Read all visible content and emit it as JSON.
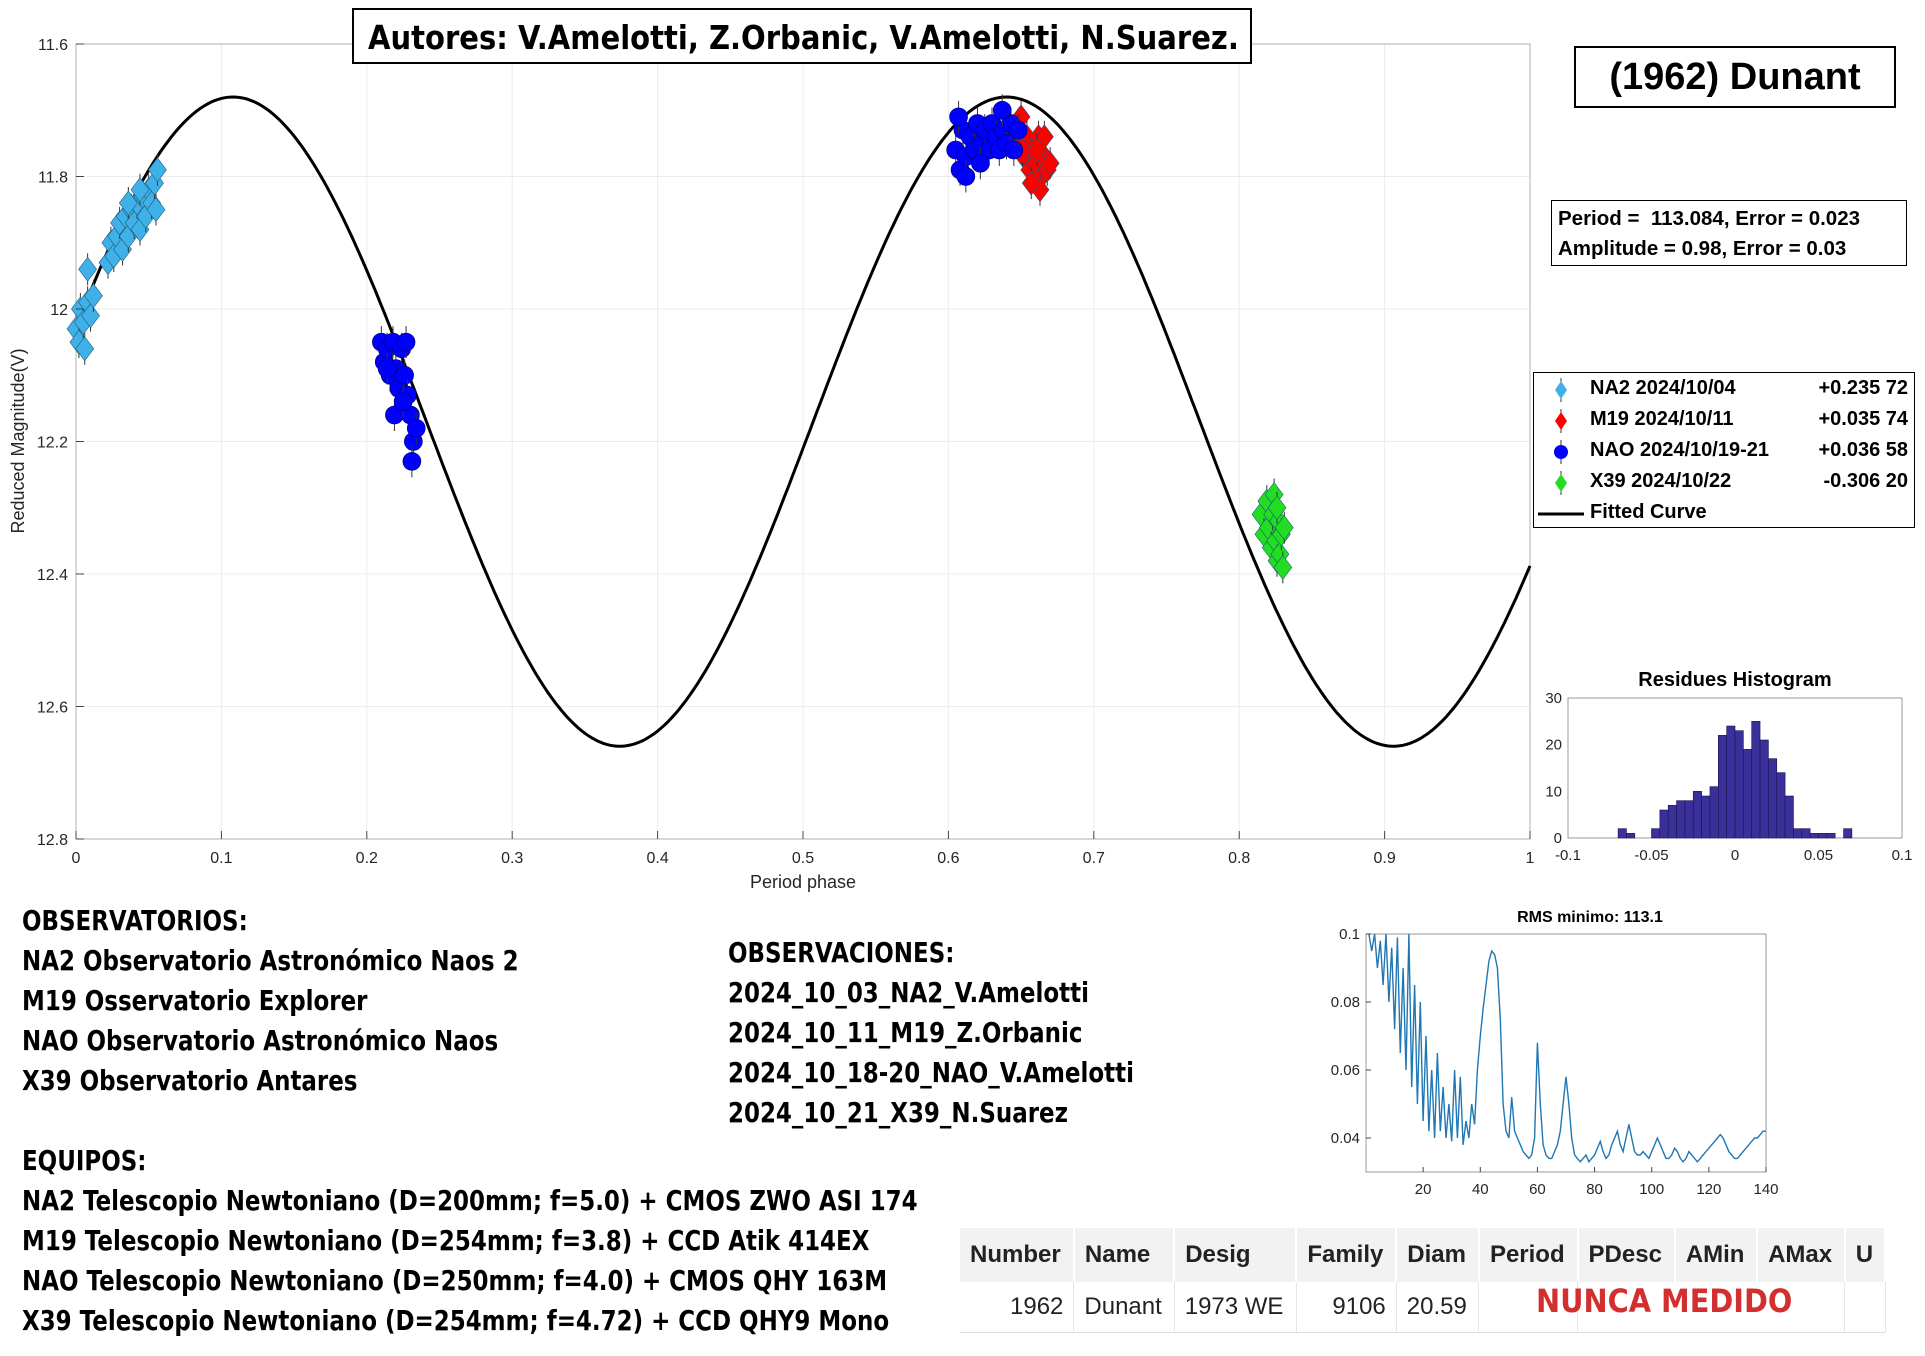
{
  "header": {
    "authors": "Autores: V.Amelotti, Z.Orbanic, V.Amelotti, N.Suarez.",
    "object_name": "(1962) Dunant",
    "period_text": "Period =  113.084, Error = 0.023",
    "amplitude_text": "Amplitude = 0.98, Error = 0.03"
  },
  "chart_data": [
    {
      "type": "scatter",
      "xlabel": "Period phase",
      "ylabel": "Reduced Magnitude(V)",
      "xlim": [
        0,
        1
      ],
      "ylim": [
        11.6,
        12.8
      ],
      "y_reversed": true,
      "xticks": [
        0,
        0.1,
        0.2,
        0.3,
        0.4,
        0.5,
        0.6,
        0.7,
        0.8,
        0.9,
        1
      ],
      "xtick_labels": [
        "0",
        "0.1",
        "0.2",
        "0.3",
        "0.4",
        "0.5",
        "0.6",
        "0.7",
        "0.8",
        "0.9",
        "1"
      ],
      "yticks": [
        11.6,
        11.8,
        12,
        12.2,
        12.4,
        12.6,
        12.8
      ],
      "ytick_labels": [
        "11.6",
        "11.8",
        "12",
        "12.2",
        "12.4",
        "12.6",
        "12.8"
      ],
      "grid": true,
      "legend_position": "right",
      "fitted_curve": {
        "name": "Fitted Curve",
        "color": "#000000",
        "mean": 12.17,
        "semi_amplitude": 0.49,
        "max_brightness_phases": [
          0.108,
          0.64
        ]
      },
      "series": [
        {
          "name": "NA2 2024/10/04",
          "offset": "+0.235 72",
          "marker": "diamond",
          "color": "#3fb0e8",
          "points": [
            [
              0.0,
              12.03
            ],
            [
              0.002,
              12.05
            ],
            [
              0.003,
              12.0
            ],
            [
              0.005,
              12.02
            ],
            [
              0.006,
              12.06
            ],
            [
              0.008,
              11.99
            ],
            [
              0.008,
              11.94
            ],
            [
              0.01,
              12.01
            ],
            [
              0.012,
              11.98
            ],
            [
              0.022,
              11.93
            ],
            [
              0.024,
              11.9
            ],
            [
              0.026,
              11.92
            ],
            [
              0.028,
              11.89
            ],
            [
              0.03,
              11.87
            ],
            [
              0.032,
              11.91
            ],
            [
              0.034,
              11.86
            ],
            [
              0.036,
              11.89
            ],
            [
              0.038,
              11.85
            ],
            [
              0.04,
              11.87
            ],
            [
              0.042,
              11.84
            ],
            [
              0.044,
              11.88
            ],
            [
              0.046,
              11.83
            ],
            [
              0.048,
              11.86
            ],
            [
              0.05,
              11.82
            ],
            [
              0.052,
              11.84
            ],
            [
              0.054,
              11.81
            ],
            [
              0.056,
              11.79
            ],
            [
              0.044,
              11.82
            ],
            [
              0.036,
              11.84
            ],
            [
              0.055,
              11.85
            ]
          ]
        },
        {
          "name": "M19 2024/10/11",
          "offset": "+0.035 74",
          "marker": "diamond",
          "color": "#ff0000",
          "points": [
            [
              0.645,
              11.73
            ],
            [
              0.648,
              11.75
            ],
            [
              0.65,
              11.71
            ],
            [
              0.652,
              11.77
            ],
            [
              0.654,
              11.74
            ],
            [
              0.656,
              11.79
            ],
            [
              0.658,
              11.76
            ],
            [
              0.66,
              11.78
            ],
            [
              0.662,
              11.74
            ],
            [
              0.664,
              11.8
            ],
            [
              0.666,
              11.77
            ],
            [
              0.668,
              11.79
            ],
            [
              0.663,
              11.82
            ],
            [
              0.657,
              11.81
            ],
            [
              0.651,
              11.76
            ],
            [
              0.666,
              11.74
            ],
            [
              0.67,
              11.78
            ],
            [
              0.661,
              11.76
            ]
          ]
        },
        {
          "name": "NAO 2024/10/19-21",
          "offset": "+0.036 58",
          "marker": "circle",
          "color": "#0000ff",
          "points": [
            [
              0.21,
              12.05
            ],
            [
              0.212,
              12.08
            ],
            [
              0.214,
              12.06
            ],
            [
              0.216,
              12.1
            ],
            [
              0.218,
              12.05
            ],
            [
              0.22,
              12.09
            ],
            [
              0.222,
              12.12
            ],
            [
              0.224,
              12.06
            ],
            [
              0.226,
              12.1
            ],
            [
              0.228,
              12.13
            ],
            [
              0.23,
              12.16
            ],
            [
              0.232,
              12.2
            ],
            [
              0.234,
              12.18
            ],
            [
              0.219,
              12.16
            ],
            [
              0.225,
              12.14
            ],
            [
              0.231,
              12.23
            ],
            [
              0.227,
              12.05
            ],
            [
              0.214,
              12.09
            ],
            [
              0.605,
              11.76
            ],
            [
              0.608,
              11.79
            ],
            [
              0.61,
              11.73
            ],
            [
              0.612,
              11.77
            ],
            [
              0.615,
              11.74
            ],
            [
              0.618,
              11.76
            ],
            [
              0.62,
              11.72
            ],
            [
              0.623,
              11.75
            ],
            [
              0.625,
              11.73
            ],
            [
              0.628,
              11.76
            ],
            [
              0.63,
              11.72
            ],
            [
              0.633,
              11.74
            ],
            [
              0.635,
              11.76
            ],
            [
              0.638,
              11.73
            ],
            [
              0.64,
              11.75
            ],
            [
              0.643,
              11.72
            ],
            [
              0.645,
              11.76
            ],
            [
              0.648,
              11.73
            ],
            [
              0.607,
              11.71
            ],
            [
              0.622,
              11.78
            ],
            [
              0.637,
              11.7
            ],
            [
              0.612,
              11.8
            ]
          ]
        },
        {
          "name": "X39 2024/10/22",
          "offset": "-0.306 20",
          "marker": "diamond",
          "color": "#22dd22",
          "points": [
            [
              0.815,
              12.31
            ],
            [
              0.817,
              12.34
            ],
            [
              0.819,
              12.29
            ],
            [
              0.82,
              12.33
            ],
            [
              0.822,
              12.36
            ],
            [
              0.823,
              12.31
            ],
            [
              0.824,
              12.28
            ],
            [
              0.825,
              12.35
            ],
            [
              0.826,
              12.38
            ],
            [
              0.827,
              12.32
            ],
            [
              0.828,
              12.37
            ],
            [
              0.829,
              12.34
            ],
            [
              0.83,
              12.39
            ],
            [
              0.831,
              12.33
            ],
            [
              0.826,
              12.3
            ]
          ]
        }
      ],
      "legend_entries": [
        {
          "label": "NA2 2024/10/04",
          "value": "+0.235 72",
          "color": "#3fb0e8",
          "marker": "diamond"
        },
        {
          "label": "M19 2024/10/11",
          "value": "+0.035 74",
          "color": "#ff0000",
          "marker": "diamond"
        },
        {
          "label": "NAO 2024/10/19-21",
          "value": "+0.036 58",
          "color": "#0000ff",
          "marker": "circle"
        },
        {
          "label": "X39 2024/10/22",
          "value": "-0.306 20",
          "color": "#22dd22",
          "marker": "diamond"
        },
        {
          "label": "Fitted Curve",
          "value": "",
          "color": "#000000",
          "marker": "line"
        }
      ]
    },
    {
      "type": "bar",
      "title": "Residues Histogram",
      "xlim": [
        -0.1,
        0.1
      ],
      "ylim": [
        0,
        30
      ],
      "xticks": [
        -0.1,
        -0.05,
        0,
        0.05,
        0.1
      ],
      "xtick_labels": [
        "-0.1",
        "-0.05",
        "0",
        "0.05",
        "0.1"
      ],
      "yticks": [
        0,
        10,
        20,
        30
      ],
      "ytick_labels": [
        "0",
        "10",
        "20",
        "30"
      ],
      "bin_width": 0.005,
      "bin_starts": [
        -0.07,
        -0.065,
        -0.06,
        -0.055,
        -0.05,
        -0.045,
        -0.04,
        -0.035,
        -0.03,
        -0.025,
        -0.02,
        -0.015,
        -0.01,
        -0.005,
        0.0,
        0.005,
        0.01,
        0.015,
        0.02,
        0.025,
        0.03,
        0.035,
        0.04,
        0.045,
        0.05,
        0.055,
        0.06,
        0.065
      ],
      "values": [
        2,
        1,
        0,
        0,
        2,
        6,
        7,
        8,
        8,
        10,
        9,
        11,
        22,
        24,
        23,
        19,
        25,
        21,
        17,
        14,
        9,
        2,
        2,
        1,
        1,
        1,
        0,
        2
      ],
      "color": "#3b2f9a"
    },
    {
      "type": "line",
      "title": "RMS minimo: 113.1",
      "xlim": [
        0,
        140
      ],
      "ylim": [
        0.03,
        0.1
      ],
      "xticks": [
        20,
        40,
        60,
        80,
        100,
        120,
        140
      ],
      "xtick_labels": [
        "20",
        "40",
        "60",
        "80",
        "100",
        "120",
        "140"
      ],
      "yticks": [
        0.04,
        0.06,
        0.08,
        0.1
      ],
      "ytick_labels": [
        "0.04",
        "0.06",
        "0.08",
        "0.1"
      ],
      "color": "#1f77b4",
      "x": [
        1,
        2,
        3,
        4,
        5,
        6,
        7,
        8,
        9,
        10,
        11,
        12,
        13,
        14,
        15,
        16,
        17,
        18,
        19,
        20,
        21,
        22,
        23,
        24,
        25,
        26,
        27,
        28,
        29,
        30,
        31,
        32,
        33,
        34,
        35,
        36,
        37,
        38,
        39,
        40,
        41,
        42,
        43,
        44,
        45,
        46,
        47,
        48,
        49,
        50,
        51,
        52,
        53,
        54,
        55,
        56,
        57,
        58,
        59,
        60,
        61,
        62,
        63,
        64,
        65,
        66,
        67,
        68,
        69,
        70,
        71,
        72,
        73,
        74,
        75,
        76,
        77,
        78,
        79,
        80,
        81,
        82,
        83,
        84,
        85,
        86,
        87,
        88,
        89,
        90,
        91,
        92,
        93,
        94,
        95,
        96,
        97,
        98,
        99,
        100,
        101,
        102,
        103,
        104,
        105,
        106,
        107,
        108,
        109,
        110,
        111,
        112,
        113,
        114,
        115,
        116,
        117,
        118,
        119,
        120,
        121,
        122,
        123,
        124,
        125,
        126,
        127,
        128,
        129,
        130,
        131,
        132,
        133,
        134,
        135,
        136,
        137,
        138,
        139,
        140
      ],
      "y": [
        0.1,
        0.095,
        0.1,
        0.09,
        0.098,
        0.085,
        0.1,
        0.08,
        0.096,
        0.072,
        0.099,
        0.065,
        0.09,
        0.06,
        0.1,
        0.055,
        0.085,
        0.05,
        0.08,
        0.045,
        0.07,
        0.042,
        0.06,
        0.04,
        0.065,
        0.042,
        0.055,
        0.04,
        0.05,
        0.039,
        0.06,
        0.04,
        0.058,
        0.038,
        0.045,
        0.04,
        0.05,
        0.044,
        0.06,
        0.07,
        0.078,
        0.085,
        0.092,
        0.095,
        0.094,
        0.09,
        0.075,
        0.05,
        0.042,
        0.04,
        0.052,
        0.042,
        0.04,
        0.038,
        0.036,
        0.035,
        0.034,
        0.035,
        0.04,
        0.068,
        0.05,
        0.038,
        0.035,
        0.034,
        0.034,
        0.036,
        0.038,
        0.042,
        0.05,
        0.058,
        0.05,
        0.04,
        0.035,
        0.034,
        0.033,
        0.034,
        0.035,
        0.033,
        0.034,
        0.035,
        0.037,
        0.039,
        0.036,
        0.034,
        0.035,
        0.038,
        0.04,
        0.042,
        0.038,
        0.036,
        0.04,
        0.044,
        0.04,
        0.036,
        0.035,
        0.035,
        0.036,
        0.035,
        0.034,
        0.036,
        0.038,
        0.04,
        0.038,
        0.036,
        0.034,
        0.034,
        0.035,
        0.037,
        0.036,
        0.034,
        0.033,
        0.034,
        0.036,
        0.035,
        0.034,
        0.033,
        0.034,
        0.035,
        0.036,
        0.037,
        0.038,
        0.039,
        0.04,
        0.041,
        0.04,
        0.038,
        0.036,
        0.035,
        0.034,
        0.034,
        0.035,
        0.036,
        0.037,
        0.038,
        0.039,
        0.04,
        0.04,
        0.041,
        0.042,
        0.042
      ]
    }
  ],
  "observatorios": {
    "heading": "OBSERVATORIOS:",
    "items": [
      "NA2 Observatorio Astronómico Naos 2",
      "M19 Osservatorio Explorer",
      "NAO Observatorio Astronómico Naos",
      "X39 Observatorio Antares"
    ]
  },
  "observaciones": {
    "heading": "OBSERVACIONES:",
    "items": [
      "2024_10_03_NA2_V.Amelotti",
      "2024_10_11_M19_Z.Orbanic",
      "2024_10_18-20_NAO_V.Amelotti",
      "2024_10_21_X39_N.Suarez"
    ]
  },
  "equipos": {
    "heading": "EQUIPOS:",
    "items": [
      "NA2 Telescopio Newtoniano (D=200mm; f=5.0) + CMOS ZWO ASI 174",
      "M19 Telescopio Newtoniano (D=254mm; f=3.8) + CCD Atik 414EX",
      "NAO Telescopio Newtoniano (D=250mm; f=4.0) + CMOS QHY 163M",
      "X39 Telescopio Newtoniano (D=254mm; f=4.72) + CCD QHY9 Mono"
    ]
  },
  "lcdb_table": {
    "headers": [
      "Number",
      "Name",
      "Desig",
      "Family",
      "Diam",
      "Period",
      "PDesc",
      "AMin",
      "AMax",
      "U"
    ],
    "row": {
      "number": "1962",
      "name": "Dunant",
      "desig": "1973 WE",
      "family": "9106",
      "diam": "20.59"
    },
    "stamp": "NUNCA MEDIDO",
    "stamp_color": "#d32f2f"
  }
}
